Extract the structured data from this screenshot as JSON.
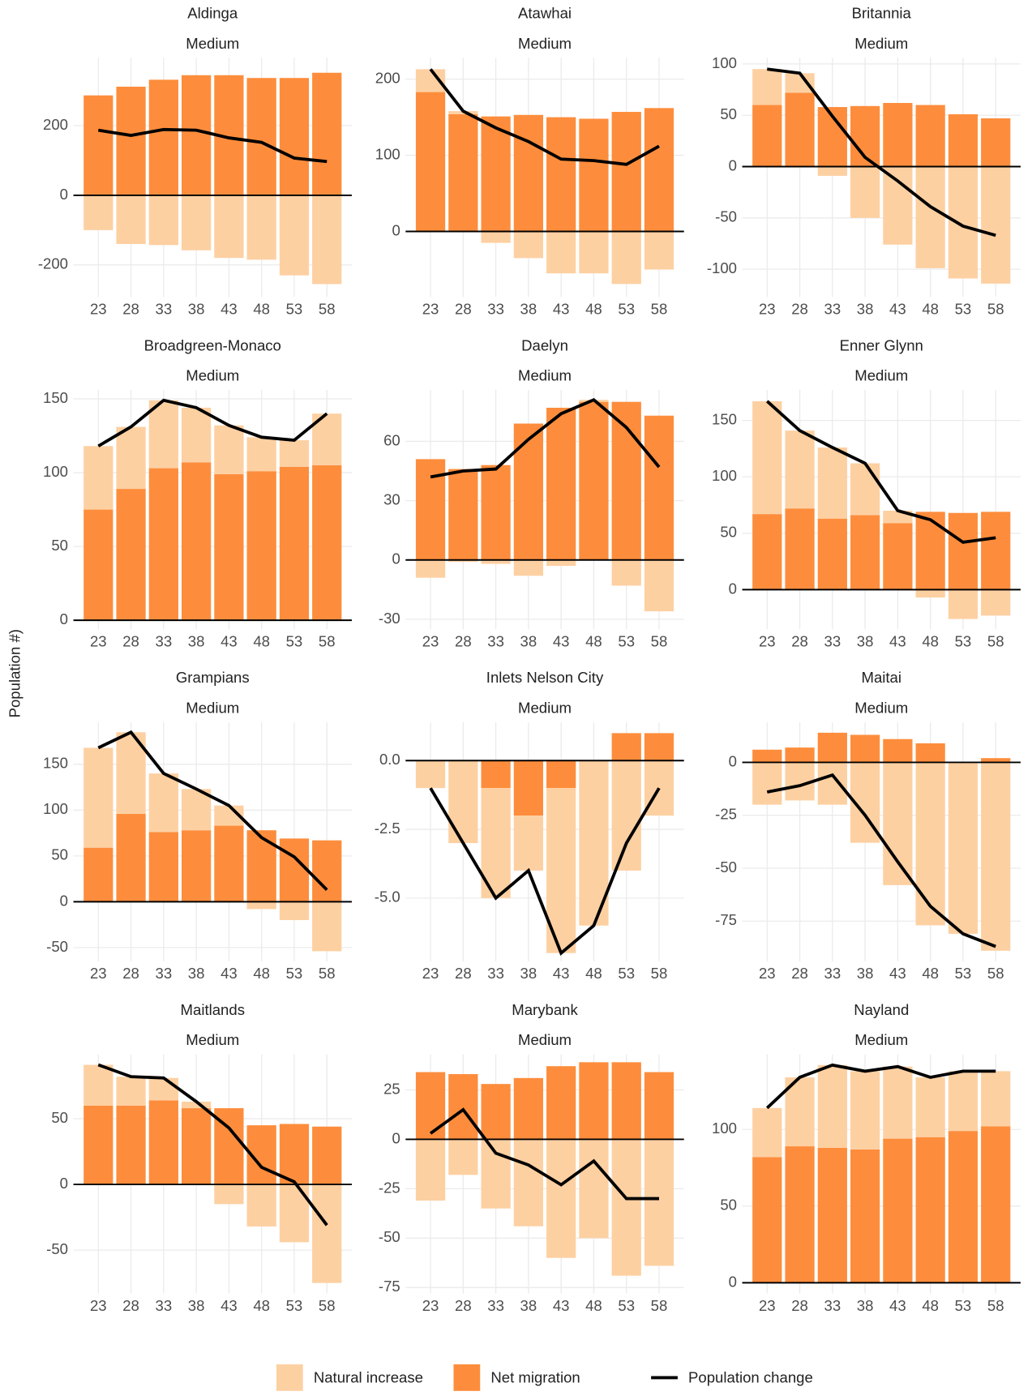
{
  "y_label": "Population #)",
  "chart_data": [
    {
      "type": "bar",
      "title": "Aldinga",
      "subtitle": "Medium",
      "categories": [
        "23",
        "28",
        "33",
        "38",
        "43",
        "48",
        "53",
        "58"
      ],
      "ylim": [
        -292,
        395
      ],
      "yticks": [
        -200,
        0,
        200
      ],
      "grid": true,
      "series": [
        {
          "name": "Natural increase",
          "type": "bar",
          "color": "#fdd0a2",
          "values": [
            -100,
            -140,
            -143,
            -158,
            -180,
            -185,
            -230,
            -255
          ]
        },
        {
          "name": "Net migration",
          "type": "bar",
          "color": "#fd8d3c",
          "values": [
            287,
            312,
            332,
            345,
            345,
            337,
            337,
            352
          ]
        },
        {
          "name": "Population change",
          "type": "line",
          "color": "#000000",
          "values": [
            187,
            172,
            189,
            187,
            165,
            152,
            107,
            97
          ]
        }
      ]
    },
    {
      "type": "bar",
      "title": "Atawhai",
      "subtitle": "Medium",
      "categories": [
        "23",
        "28",
        "33",
        "38",
        "43",
        "48",
        "53",
        "58"
      ],
      "ylim": [
        -86,
        228
      ],
      "yticks": [
        0,
        100,
        200
      ],
      "grid": true,
      "series": [
        {
          "name": "Natural increase",
          "type": "bar",
          "color": "#fdd0a2",
          "values": [
            30,
            4,
            -15,
            -35,
            -55,
            -55,
            -69,
            -50
          ]
        },
        {
          "name": "Net migration",
          "type": "bar",
          "color": "#fd8d3c",
          "values": [
            183,
            154,
            151,
            153,
            150,
            148,
            157,
            162
          ]
        },
        {
          "name": "Population change",
          "type": "line",
          "color": "#000000",
          "values": [
            213,
            158,
            136,
            118,
            95,
            93,
            88,
            112
          ]
        }
      ]
    },
    {
      "type": "bar",
      "title": "Britannia",
      "subtitle": "Medium",
      "categories": [
        "23",
        "28",
        "33",
        "38",
        "43",
        "48",
        "53",
        "58"
      ],
      "ylim": [
        -127,
        106
      ],
      "yticks": [
        -100,
        -50,
        0,
        50,
        100
      ],
      "grid": true,
      "series": [
        {
          "name": "Natural increase",
          "type": "bar",
          "color": "#fdd0a2",
          "values": [
            35,
            19,
            -9,
            -50,
            -76,
            -99,
            -109,
            -114
          ]
        },
        {
          "name": "Net migration",
          "type": "bar",
          "color": "#fd8d3c",
          "values": [
            60,
            72,
            58,
            59,
            62,
            60,
            51,
            47
          ]
        },
        {
          "name": "Population change",
          "type": "line",
          "color": "#000000",
          "values": [
            95,
            91,
            49,
            9,
            -14,
            -39,
            -58,
            -67
          ]
        }
      ]
    },
    {
      "type": "bar",
      "title": "Broadgreen-Monaco",
      "subtitle": "Medium",
      "categories": [
        "23",
        "28",
        "33",
        "38",
        "43",
        "48",
        "53",
        "58"
      ],
      "ylim": [
        -6,
        156
      ],
      "yticks": [
        0,
        50,
        100,
        150
      ],
      "grid": true,
      "series": [
        {
          "name": "Natural increase",
          "type": "bar",
          "color": "#fdd0a2",
          "values": [
            43,
            42,
            46,
            37,
            33,
            23,
            18,
            35
          ]
        },
        {
          "name": "Net migration",
          "type": "bar",
          "color": "#fd8d3c",
          "values": [
            75,
            89,
            103,
            107,
            99,
            101,
            104,
            105
          ]
        },
        {
          "name": "Population change",
          "type": "line",
          "color": "#000000",
          "values": [
            118,
            131,
            149,
            144,
            132,
            124,
            122,
            140
          ]
        }
      ]
    },
    {
      "type": "bar",
      "title": "Daelyn",
      "subtitle": "Medium",
      "categories": [
        "23",
        "28",
        "33",
        "38",
        "43",
        "48",
        "53",
        "58"
      ],
      "ylim": [
        -35,
        86
      ],
      "yticks": [
        -30,
        0,
        30,
        60
      ],
      "grid": true,
      "series": [
        {
          "name": "Natural increase",
          "type": "bar",
          "color": "#fdd0a2",
          "values": [
            -9,
            -1,
            -2,
            -8,
            -3,
            1,
            -13,
            -26
          ]
        },
        {
          "name": "Net migration",
          "type": "bar",
          "color": "#fd8d3c",
          "values": [
            51,
            46,
            48,
            69,
            77,
            80,
            80,
            73
          ]
        },
        {
          "name": "Population change",
          "type": "line",
          "color": "#000000",
          "values": [
            42,
            45,
            46,
            61,
            74,
            81,
            67,
            47
          ]
        }
      ]
    },
    {
      "type": "bar",
      "title": "Enner Glynn",
      "subtitle": "Medium",
      "categories": [
        "23",
        "28",
        "33",
        "38",
        "43",
        "48",
        "53",
        "58"
      ],
      "ylim": [
        -35,
        177
      ],
      "yticks": [
        0,
        50,
        100,
        150
      ],
      "grid": true,
      "series": [
        {
          "name": "Natural increase",
          "type": "bar",
          "color": "#fdd0a2",
          "values": [
            100,
            69,
            63,
            46,
            11,
            -7,
            -26,
            -23
          ]
        },
        {
          "name": "Net migration",
          "type": "bar",
          "color": "#fd8d3c",
          "values": [
            67,
            72,
            63,
            66,
            59,
            69,
            68,
            69
          ]
        },
        {
          "name": "Population change",
          "type": "line",
          "color": "#000000",
          "values": [
            167,
            141,
            126,
            112,
            70,
            62,
            42,
            46
          ]
        }
      ]
    },
    {
      "type": "bar",
      "title": "Grampians",
      "subtitle": "Medium",
      "categories": [
        "23",
        "28",
        "33",
        "38",
        "43",
        "48",
        "53",
        "58"
      ],
      "ylim": [
        -65,
        196
      ],
      "yticks": [
        -50,
        0,
        50,
        100,
        150
      ],
      "grid": true,
      "series": [
        {
          "name": "Natural increase",
          "type": "bar",
          "color": "#fdd0a2",
          "values": [
            109,
            89,
            64,
            45,
            22,
            -8,
            -20,
            -54
          ]
        },
        {
          "name": "Net migration",
          "type": "bar",
          "color": "#fd8d3c",
          "values": [
            59,
            96,
            76,
            78,
            83,
            78,
            69,
            67
          ]
        },
        {
          "name": "Population change",
          "type": "line",
          "color": "#000000",
          "values": [
            168,
            185,
            140,
            123,
            105,
            70,
            49,
            13
          ]
        }
      ]
    },
    {
      "type": "bar",
      "title": "Inlets Nelson City",
      "subtitle": "Medium",
      "categories": [
        "23",
        "28",
        "33",
        "38",
        "43",
        "48",
        "53",
        "58"
      ],
      "ylim": [
        -7.3,
        1.4
      ],
      "yticks": [
        {
          "value": 0,
          "label": "0.0"
        },
        -2.5,
        {
          "value": -5,
          "label": "-5.0"
        }
      ],
      "grid": true,
      "series": [
        {
          "name": "Natural increase",
          "type": "bar",
          "color": "#fdd0a2",
          "values": [
            -1,
            -3,
            -4,
            -2,
            -6,
            -6,
            -4,
            -2
          ]
        },
        {
          "name": "Net migration",
          "type": "bar",
          "color": "#fd8d3c",
          "values": [
            0,
            0,
            -1,
            -2,
            -1,
            0,
            1,
            1
          ]
        },
        {
          "name": "Population change",
          "type": "line",
          "color": "#000000",
          "values": [
            -1,
            -3,
            -5,
            -4,
            -7,
            -6,
            -3,
            -1
          ]
        }
      ]
    },
    {
      "type": "bar",
      "title": "Maitai",
      "subtitle": "Medium",
      "categories": [
        "23",
        "28",
        "33",
        "38",
        "43",
        "48",
        "53",
        "58"
      ],
      "ylim": [
        -94,
        19
      ],
      "yticks": [
        -75,
        -50,
        -25,
        0
      ],
      "grid": true,
      "series": [
        {
          "name": "Natural increase",
          "type": "bar",
          "color": "#fdd0a2",
          "values": [
            -20,
            -18,
            -20,
            -38,
            -58,
            -77,
            -81,
            -89
          ]
        },
        {
          "name": "Net migration",
          "type": "bar",
          "color": "#fd8d3c",
          "values": [
            6,
            7,
            14,
            13,
            11,
            9,
            0,
            2
          ]
        },
        {
          "name": "Population change",
          "type": "line",
          "color": "#000000",
          "values": [
            -14,
            -11,
            -6,
            -25,
            -47,
            -68,
            -81,
            -87
          ]
        }
      ]
    },
    {
      "type": "bar",
      "title": "Maitlands",
      "subtitle": "Medium",
      "categories": [
        "23",
        "28",
        "33",
        "38",
        "43",
        "48",
        "53",
        "58"
      ],
      "ylim": [
        -83,
        99
      ],
      "yticks": [
        -50,
        0,
        50
      ],
      "grid": true,
      "series": [
        {
          "name": "Natural increase",
          "type": "bar",
          "color": "#fdd0a2",
          "values": [
            31,
            22,
            17,
            5,
            -15,
            -32,
            -44,
            -75
          ]
        },
        {
          "name": "Net migration",
          "type": "bar",
          "color": "#fd8d3c",
          "values": [
            60,
            60,
            64,
            58,
            58,
            45,
            46,
            44
          ]
        },
        {
          "name": "Population change",
          "type": "line",
          "color": "#000000",
          "values": [
            91,
            82,
            81,
            63,
            43,
            13,
            2,
            -31
          ]
        }
      ]
    },
    {
      "type": "bar",
      "title": "Marybank",
      "subtitle": "Medium",
      "categories": [
        "23",
        "28",
        "33",
        "38",
        "43",
        "48",
        "53",
        "58"
      ],
      "ylim": [
        -78,
        43
      ],
      "yticks": [
        -75,
        -50,
        -25,
        0,
        25
      ],
      "grid": true,
      "series": [
        {
          "name": "Natural increase",
          "type": "bar",
          "color": "#fdd0a2",
          "values": [
            -31,
            -18,
            -35,
            -44,
            -60,
            -50,
            -69,
            -64
          ]
        },
        {
          "name": "Net migration",
          "type": "bar",
          "color": "#fd8d3c",
          "values": [
            34,
            33,
            28,
            31,
            37,
            39,
            39,
            34
          ]
        },
        {
          "name": "Population change",
          "type": "line",
          "color": "#000000",
          "values": [
            3,
            15,
            -7,
            -13,
            -23,
            -11,
            -30,
            -30
          ]
        }
      ]
    },
    {
      "type": "bar",
      "title": "Nayland",
      "subtitle": "Medium",
      "categories": [
        "23",
        "28",
        "33",
        "38",
        "43",
        "48",
        "53",
        "58"
      ],
      "ylim": [
        -7,
        149
      ],
      "yticks": [
        0,
        50,
        100
      ],
      "grid": true,
      "series": [
        {
          "name": "Natural increase",
          "type": "bar",
          "color": "#fdd0a2",
          "values": [
            32,
            45,
            54,
            51,
            47,
            39,
            39,
            36
          ]
        },
        {
          "name": "Net migration",
          "type": "bar",
          "color": "#fd8d3c",
          "values": [
            82,
            89,
            88,
            87,
            94,
            95,
            99,
            102
          ]
        },
        {
          "name": "Population change",
          "type": "line",
          "color": "#000000",
          "values": [
            114,
            134,
            142,
            138,
            141,
            134,
            138,
            138
          ]
        }
      ]
    }
  ]
}
